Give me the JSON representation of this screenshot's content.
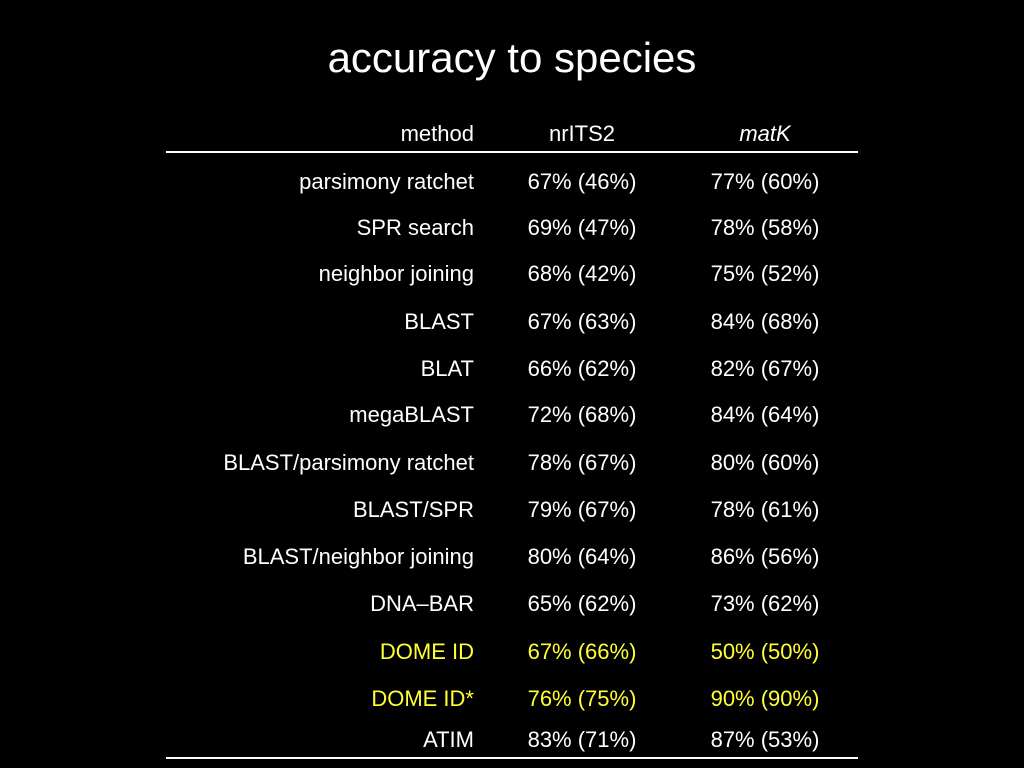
{
  "title": "accuracy to species",
  "table": {
    "headers": {
      "method": "method",
      "col1": "nrITS2",
      "col2": "matK"
    },
    "rows": [
      {
        "method": "parsimony ratchet",
        "col1": "67% (46%)",
        "col2": "77% (60%)",
        "highlight": false
      },
      {
        "method": "SPR search",
        "col1": "69% (47%)",
        "col2": "78% (58%)",
        "highlight": false
      },
      {
        "method": "neighbor joining",
        "col1": "68% (42%)",
        "col2": "75% (52%)",
        "highlight": false
      },
      {
        "method": "BLAST",
        "col1": "67% (63%)",
        "col2": "84% (68%)",
        "highlight": false
      },
      {
        "method": "BLAT",
        "col1": "66% (62%)",
        "col2": "82% (67%)",
        "highlight": false
      },
      {
        "method": "megaBLAST",
        "col1": "72% (68%)",
        "col2": "84% (64%)",
        "highlight": false
      },
      {
        "method": "BLAST/parsimony ratchet",
        "col1": "78% (67%)",
        "col2": "80% (60%)",
        "highlight": false
      },
      {
        "method": "BLAST/SPR",
        "col1": "79% (67%)",
        "col2": "78% (61%)",
        "highlight": false
      },
      {
        "method": "BLAST/neighbor joining",
        "col1": "80% (64%)",
        "col2": "86% (56%)",
        "highlight": false
      },
      {
        "method": "DNA–BAR",
        "col1": "65% (62%)",
        "col2": "73% (62%)",
        "highlight": false
      },
      {
        "method": "DOME ID",
        "col1": "67% (66%)",
        "col2": "50% (50%)",
        "highlight": true
      },
      {
        "method": "DOME ID*",
        "col1": "76% (75%)",
        "col2": "90% (90%)",
        "highlight": true
      },
      {
        "method": "ATIM",
        "col1": "83% (71%)",
        "col2": "87% (53%)",
        "highlight": false
      }
    ]
  },
  "colors": {
    "background": "#000000",
    "text": "#ffffff",
    "highlight": "#ffff33"
  }
}
